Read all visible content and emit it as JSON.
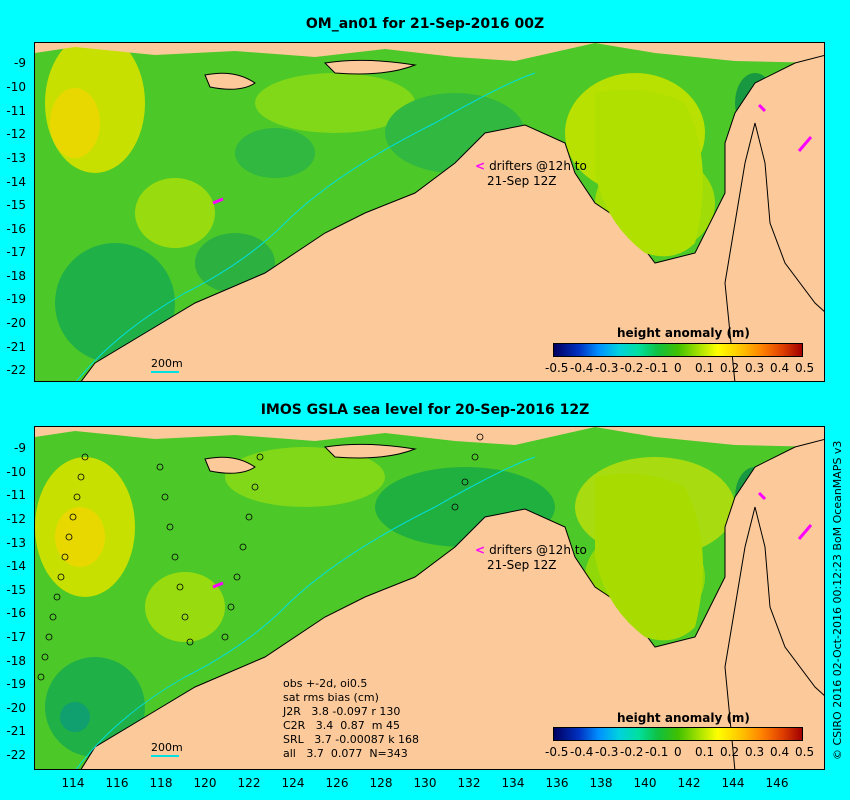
{
  "top_panel": {
    "title": "OM_an01 for 21-Sep-2016 00Z",
    "colorbar_title": "height anomaly (m)",
    "drifter_legend_line1": "drifters @12h to",
    "drifter_legend_line2": "21-Sep 12Z",
    "scale_label": "200m"
  },
  "bottom_panel": {
    "title": "IMOS GSLA sea level  for 20-Sep-2016 12Z",
    "colorbar_title": "height anomaly (m)",
    "drifter_legend_line1": "drifters @12h to",
    "drifter_legend_line2": "21-Sep 12Z",
    "scale_label": "200m",
    "stats": {
      "line1": "obs +-2d, oi0.5",
      "line2": "sat rms bias (cm)",
      "line3": "J2R   3.8 -0.097 r 130",
      "line4": "C2R   3.4  0.87  m 45",
      "line5": "SRL   3.7 -0.00087 k 168",
      "line6": "all   3.7  0.077  N=343"
    }
  },
  "colorbar_ticks": [
    "-0.5",
    "-0.4",
    "-0.3",
    "-0.2",
    "-0.1",
    "0",
    "0.1",
    "0.2",
    "0.3",
    "0.4",
    "0.5"
  ],
  "y_ticks": [
    "-9",
    "-10",
    "-11",
    "-12",
    "-13",
    "-14",
    "-15",
    "-16",
    "-17",
    "-18",
    "-19",
    "-20",
    "-21",
    "-22"
  ],
  "x_ticks": [
    "114",
    "116",
    "118",
    "120",
    "122",
    "124",
    "126",
    "128",
    "130",
    "132",
    "134",
    "136",
    "138",
    "140",
    "142",
    "144",
    "146"
  ],
  "credit": "© CSIRO 2016  02-Oct-2016 00:12:23 BoM OceanMAPS v3",
  "colors": {
    "background": "#00ffff",
    "land": "#fbc99a",
    "shelf": "#a0a0a0",
    "drifter": "#ff00ff",
    "isobath": "#00e0e0"
  }
}
